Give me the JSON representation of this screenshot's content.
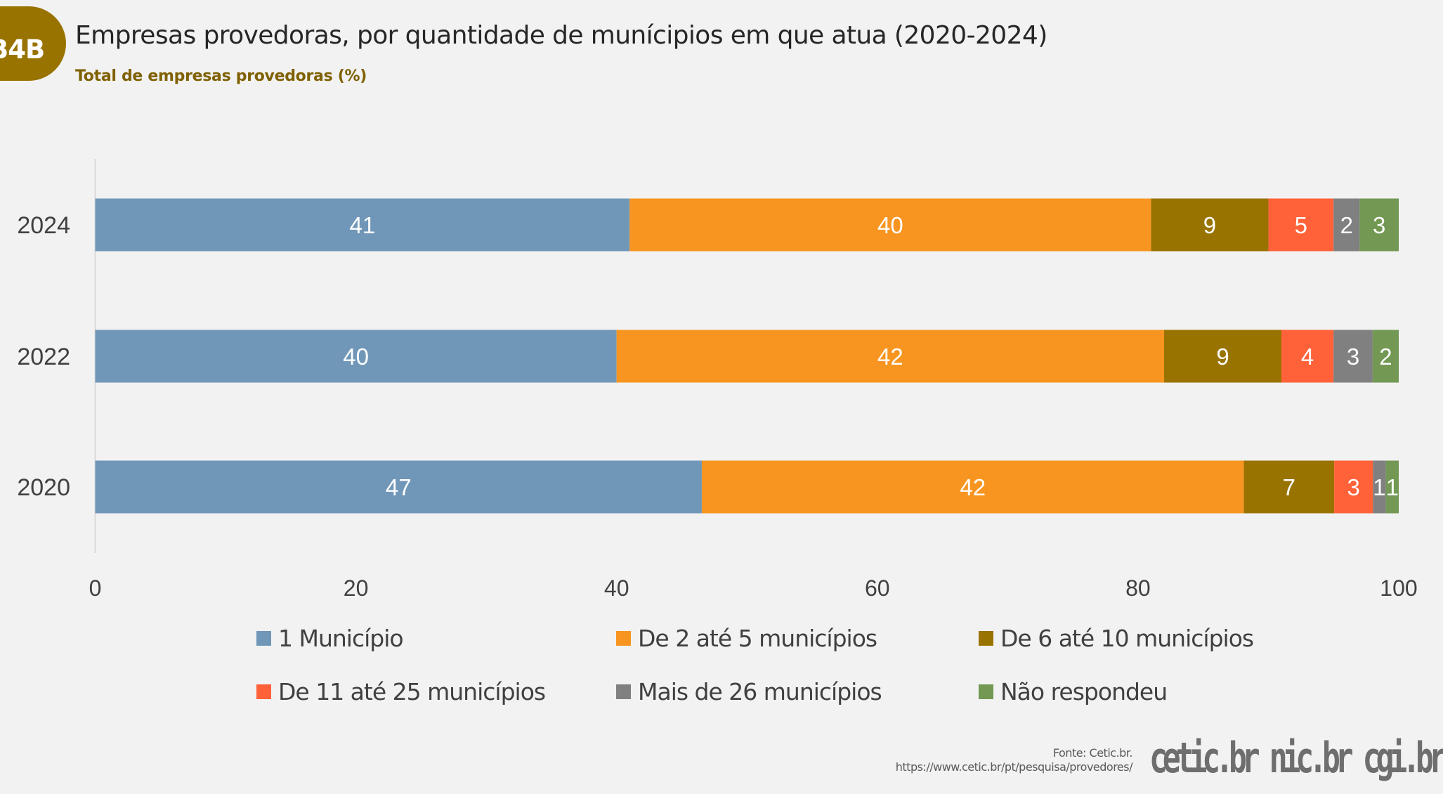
{
  "header": {
    "badge": "B4B",
    "title": "Empresas provedoras, por quantidade de munícipios em que atua (2020-2024)",
    "subtitle": "Total de empresas provedoras (%)"
  },
  "chart_data": {
    "type": "bar",
    "orientation": "horizontal",
    "stacked": true,
    "title": "Empresas provedoras, por quantidade de munícipios em que atua (2020-2024)",
    "subtitle": "Total de empresas provedoras (%)",
    "xlabel": "",
    "ylabel": "",
    "xlim": [
      0,
      100
    ],
    "xticks": [
      "0",
      "20",
      "40",
      "60",
      "80",
      "100"
    ],
    "categories": [
      "2024",
      "2022",
      "2020"
    ],
    "grid": false,
    "legend_position": "bottom",
    "series": [
      {
        "name": "1  Município",
        "color": "#7097b8",
        "values": [
          41,
          40,
          47
        ]
      },
      {
        "name": "De 2 até 5 municípios",
        "color": "#f79520",
        "values": [
          40,
          42,
          42
        ]
      },
      {
        "name": "De 6 até 10 municípios",
        "color": "#997300",
        "values": [
          9,
          9,
          7
        ]
      },
      {
        "name": "De 11 até 25 municípios",
        "color": "#ff6138",
        "values": [
          5,
          4,
          3
        ]
      },
      {
        "name": "Mais de 26  municípios",
        "color": "#808080",
        "values": [
          2,
          3,
          1
        ]
      },
      {
        "name": "Não respondeu",
        "color": "#729853",
        "values": [
          3,
          2,
          1
        ]
      }
    ]
  },
  "footer": {
    "source": "Fonte: Cetic.br.",
    "url": "https://www.cetic.br/pt/pesquisa/provedores/",
    "logos": [
      "cetic.br",
      "nic.br",
      "cgi.br"
    ]
  }
}
